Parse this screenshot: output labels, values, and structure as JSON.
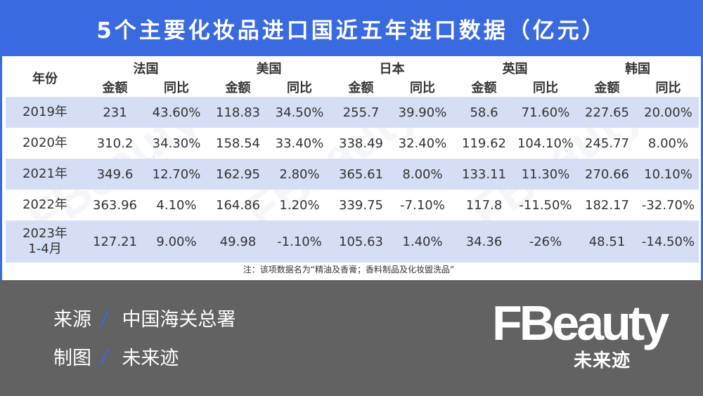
{
  "title": "5个主要化妆品进口国近五年进口数据（亿元）",
  "table": {
    "year_header": "年份",
    "countries": [
      "法国",
      "美国",
      "日本",
      "英国",
      "韩国"
    ],
    "sub_headers": [
      "金额",
      "同比"
    ],
    "rows": [
      {
        "year": "2019年",
        "year_line2": "",
        "cells": [
          "231",
          "43.60%",
          "118.83",
          "34.50%",
          "255.7",
          "39.90%",
          "58.6",
          "71.60%",
          "227.65",
          "20.00%"
        ]
      },
      {
        "year": "2020年",
        "year_line2": "",
        "cells": [
          "310.2",
          "34.30%",
          "158.54",
          "33.40%",
          "338.49",
          "32.40%",
          "119.62",
          "104.10%",
          "245.77",
          "8.00%"
        ]
      },
      {
        "year": "2021年",
        "year_line2": "",
        "cells": [
          "349.6",
          "12.70%",
          "162.95",
          "2.80%",
          "365.61",
          "8.00%",
          "133.11",
          "11.30%",
          "270.66",
          "10.10%"
        ]
      },
      {
        "year": "2022年",
        "year_line2": "",
        "cells": [
          "363.96",
          "4.10%",
          "164.86",
          "1.20%",
          "339.75",
          "-7.10%",
          "117.8",
          "-11.50%",
          "182.17",
          "-32.70%"
        ]
      },
      {
        "year": "2023年",
        "year_line2": "1-4月",
        "cells": [
          "127.21",
          "9.00%",
          "49.98",
          "-1.10%",
          "105.63",
          "1.40%",
          "34.36",
          "-26%",
          "48.51",
          "-14.50%"
        ]
      }
    ],
    "note": "注：该项数据名为“精油及香膏；香料制品及化妆盥洗品”"
  },
  "footer": {
    "source_label": "来源",
    "source_value": "中国海关总署",
    "chart_label": "制图",
    "chart_value": "未来迹",
    "separator": "/",
    "logo_word": "FBeauty",
    "logo_cn": "未来迹"
  },
  "colors": {
    "accent": "#3a6ae0",
    "row_alt": "#d5def5",
    "footer_bg": "#626262"
  },
  "chart_data": {
    "type": "table",
    "title": "5个主要化妆品进口国近五年进口数据（亿元）",
    "columns": [
      "年份",
      "法国金额",
      "法国同比",
      "美国金额",
      "美国同比",
      "日本金额",
      "日本同比",
      "英国金额",
      "英国同比",
      "韩国金额",
      "韩国同比"
    ],
    "categories": [
      "2019年",
      "2020年",
      "2021年",
      "2022年",
      "2023年1-4月"
    ],
    "series": [
      {
        "name": "法国金额",
        "values": [
          231,
          310.2,
          349.6,
          363.96,
          127.21
        ]
      },
      {
        "name": "法国同比(%)",
        "values": [
          43.6,
          34.3,
          12.7,
          4.1,
          9.0
        ]
      },
      {
        "name": "美国金额",
        "values": [
          118.83,
          158.54,
          162.95,
          164.86,
          49.98
        ]
      },
      {
        "name": "美国同比(%)",
        "values": [
          34.5,
          33.4,
          2.8,
          1.2,
          -1.1
        ]
      },
      {
        "name": "日本金额",
        "values": [
          255.7,
          338.49,
          365.61,
          339.75,
          105.63
        ]
      },
      {
        "name": "日本同比(%)",
        "values": [
          39.9,
          32.4,
          8.0,
          -7.1,
          1.4
        ]
      },
      {
        "name": "英国金额",
        "values": [
          58.6,
          119.62,
          133.11,
          117.8,
          34.36
        ]
      },
      {
        "name": "英国同比(%)",
        "values": [
          71.6,
          104.1,
          11.3,
          -11.5,
          -26
        ]
      },
      {
        "name": "韩国金额",
        "values": [
          227.65,
          245.77,
          270.66,
          182.17,
          48.51
        ]
      },
      {
        "name": "韩国同比(%)",
        "values": [
          20.0,
          8.0,
          10.1,
          -32.7,
          -14.5
        ]
      }
    ],
    "note": "注：该项数据名为“精油及香膏；香料制品及化妆盥洗品”",
    "source": "中国海关总署"
  }
}
